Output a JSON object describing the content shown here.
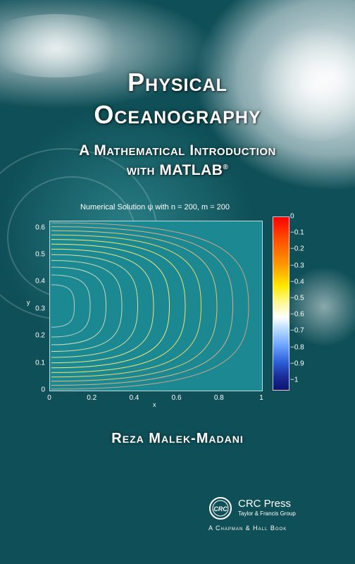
{
  "cover": {
    "title_line1": "Physical",
    "title_line2": "Oceanography",
    "subtitle_line1": "A Mathematical Introduction",
    "subtitle_line2": "with MATLAB",
    "subtitle_reg": "®",
    "author": "Reza Malek-Madani",
    "publisher": "CRC Press",
    "publisher_group": "Taylor & Francis Group",
    "publisher_logo_text": "CRC",
    "imprint": "A Chapman & Hall Book"
  },
  "chart_data": {
    "type": "heatmap",
    "title": "Numerical Solution ψ with n = 200, m = 200",
    "xlabel": "x",
    "ylabel": "y",
    "xlim": [
      0,
      1
    ],
    "ylim": [
      0,
      0.625
    ],
    "xticks": [
      "0",
      "0.2",
      "0.4",
      "0.6",
      "0.8",
      "1"
    ],
    "yticks": [
      "0",
      "0.1",
      "0.2",
      "0.3",
      "0.4",
      "0.5",
      "0.6"
    ],
    "colorbar_ticks": [
      "0",
      "−0.1",
      "−0.2",
      "−0.3",
      "−0.4",
      "−0.5",
      "−0.6",
      "−0.7",
      "−0.8",
      "−0.9",
      "−1"
    ],
    "clim": [
      -1,
      0
    ]
  }
}
